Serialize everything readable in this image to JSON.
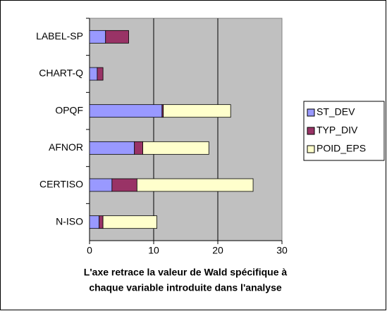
{
  "chart_data": {
    "type": "barh-stacked",
    "categories": [
      "LABEL-SP",
      "CHART-Q",
      "OPQF",
      "AFNOR",
      "CERTISO",
      "N-ISO"
    ],
    "series": [
      {
        "name": "ST_DEV",
        "color": "#9999ff",
        "values": [
          2.5,
          1.2,
          11.3,
          7.0,
          3.5,
          1.5
        ]
      },
      {
        "name": "TYP_DIV",
        "color": "#993366",
        "values": [
          3.6,
          0.9,
          0.2,
          1.3,
          3.9,
          0.6
        ]
      },
      {
        "name": "POID_EPS",
        "color": "#ffffcc",
        "values": [
          0,
          0,
          10.5,
          10.3,
          18.1,
          8.4
        ]
      }
    ],
    "xlim": [
      0,
      30
    ],
    "xticks": [
      0,
      10,
      20,
      30
    ],
    "grid": true,
    "legend": "right",
    "x_label": [
      "L'axe retrace la valeur de Wald spécifique à",
      "chaque variable introduite dans l'analyse"
    ]
  }
}
